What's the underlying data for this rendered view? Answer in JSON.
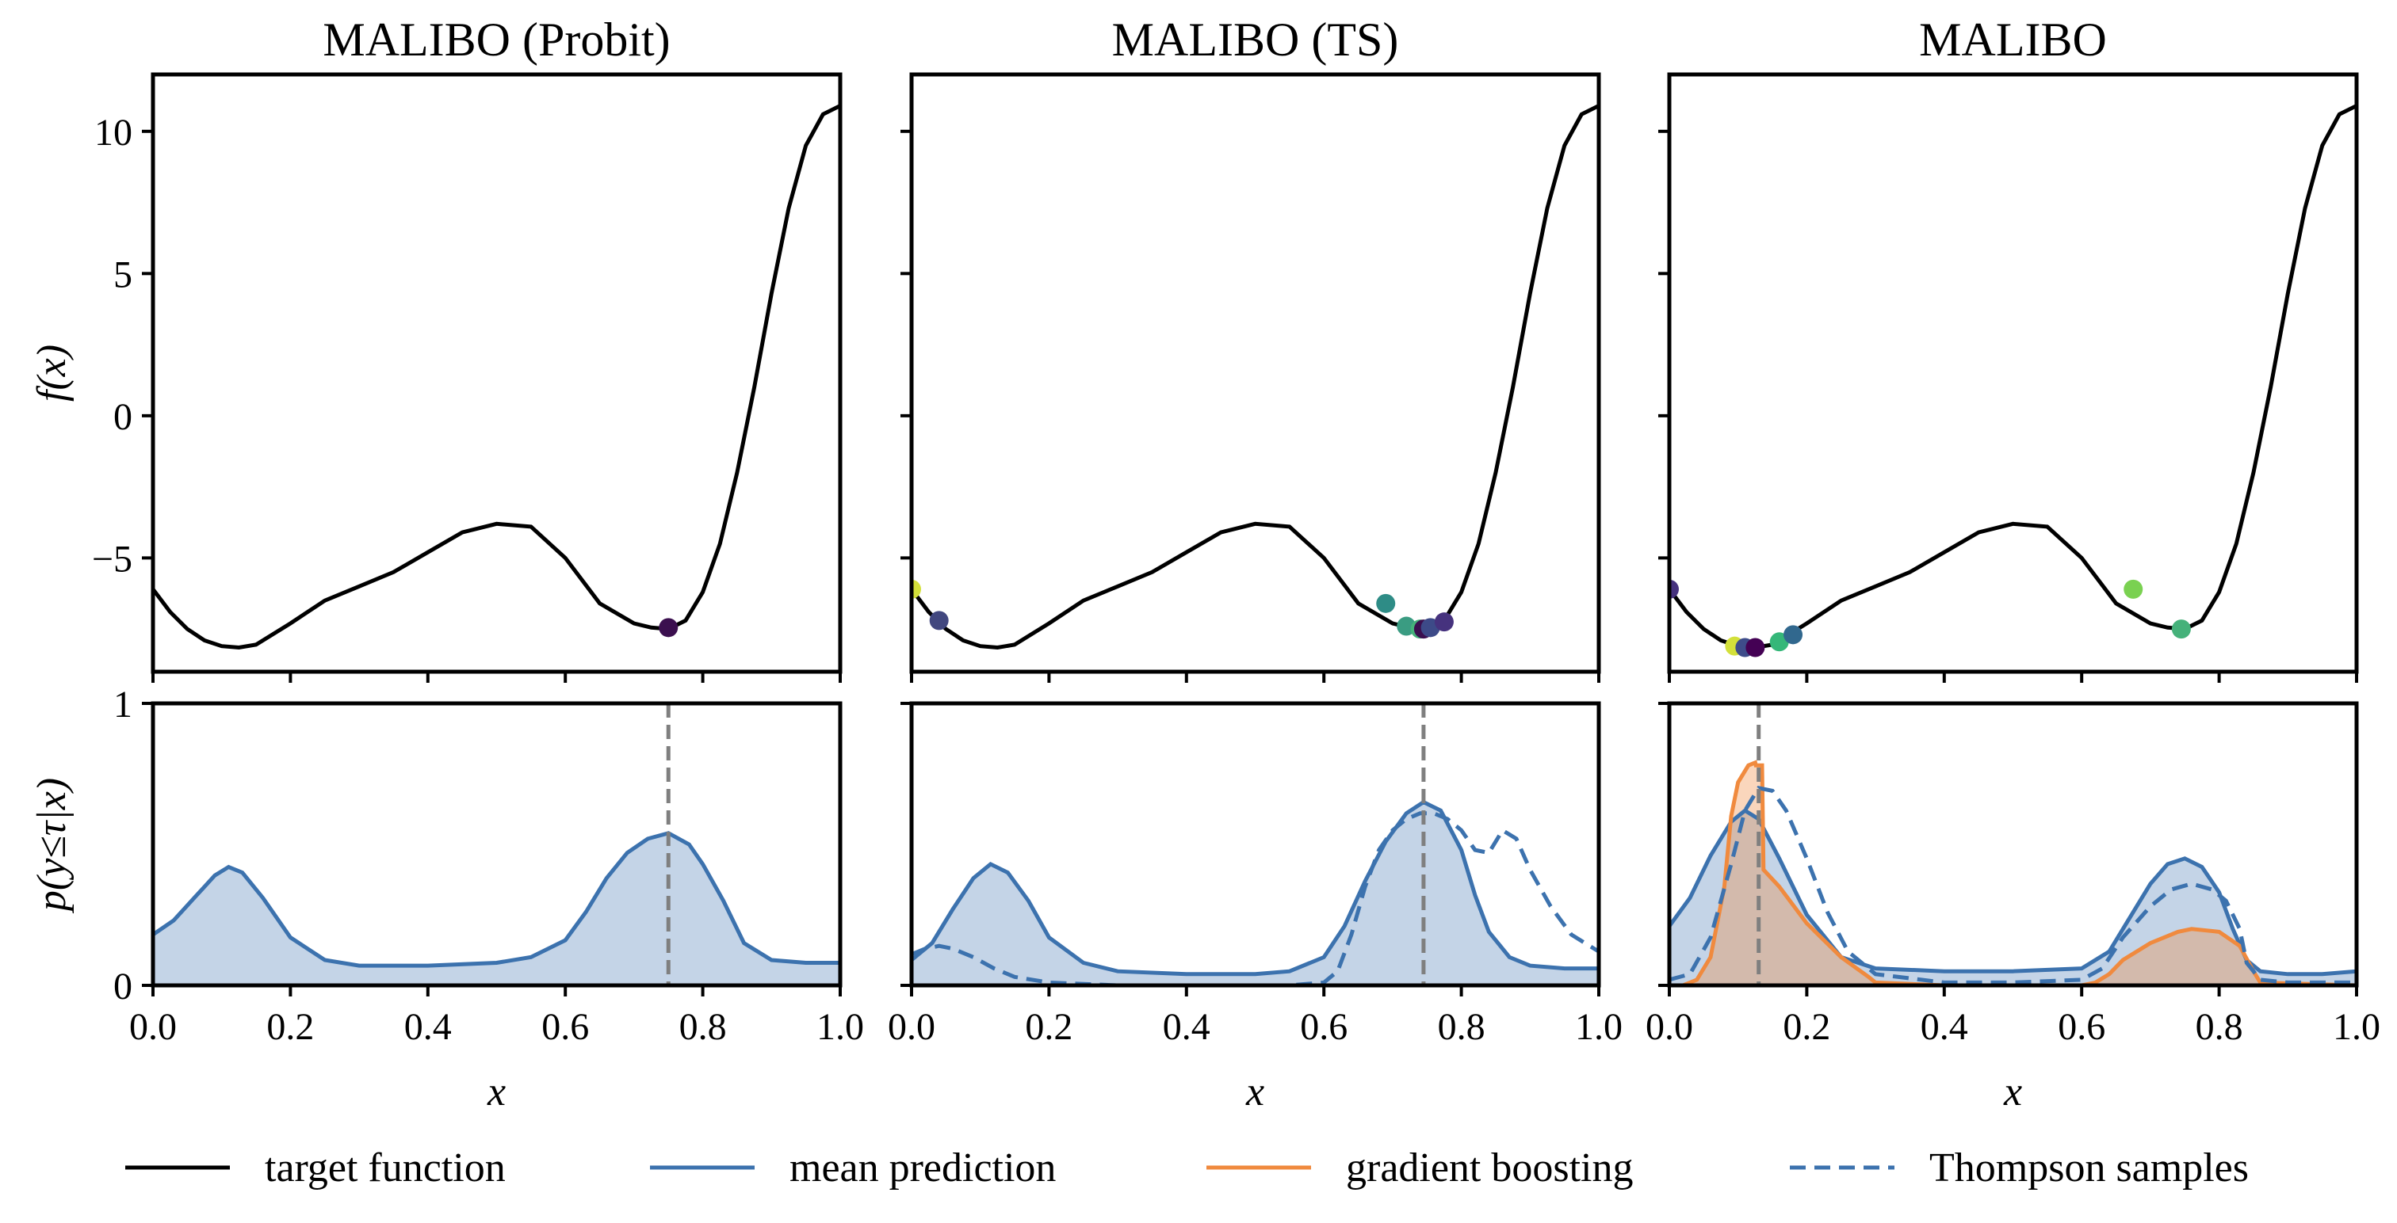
{
  "chart_data": {
    "type": "line",
    "legend": {
      "placement": "bottom",
      "entries": [
        {
          "label": "target function",
          "style": "solid",
          "color": "#000000"
        },
        {
          "label": "mean prediction",
          "style": "solid",
          "color": "#3c72ae"
        },
        {
          "label": "gradient boosting",
          "style": "solid",
          "color": "#f08a3e"
        },
        {
          "label": "Thompson samples",
          "style": "dashed",
          "color": "#3c72ae"
        }
      ]
    },
    "xlabel": "x",
    "ylabel_top": "f(x)",
    "ylabel_bottom": "p(y≤τ|x)",
    "xlim": [
      0,
      1
    ],
    "ylim_top": [
      -9,
      12
    ],
    "ylim_bottom": [
      0,
      1
    ],
    "xticks": [
      0.0,
      0.2,
      0.4,
      0.6,
      0.8,
      1.0
    ],
    "xtick_labels": [
      "0.0",
      "0.2",
      "0.4",
      "0.6",
      "0.8",
      "1.0"
    ],
    "yticks_top": [
      10,
      5,
      0,
      -5
    ],
    "ytick_labels_top": [
      "10",
      "5",
      "0",
      "−5"
    ],
    "yticks_bottom": [
      1,
      0
    ],
    "ytick_labels_bottom": [
      "1",
      "0"
    ],
    "target_function": {
      "x": [
        0.0,
        0.025,
        0.05,
        0.075,
        0.1,
        0.125,
        0.15,
        0.2,
        0.25,
        0.3,
        0.35,
        0.4,
        0.45,
        0.5,
        0.55,
        0.6,
        0.65,
        0.7,
        0.725,
        0.75,
        0.775,
        0.8,
        0.825,
        0.85,
        0.875,
        0.9,
        0.925,
        0.95,
        0.975,
        1.0
      ],
      "y": [
        -6.1,
        -6.9,
        -7.5,
        -7.9,
        -8.1,
        -8.15,
        -8.05,
        -7.3,
        -6.5,
        -6.0,
        -5.5,
        -4.8,
        -4.1,
        -3.8,
        -3.9,
        -5.0,
        -6.6,
        -7.3,
        -7.45,
        -7.5,
        -7.2,
        -6.2,
        -4.5,
        -2.0,
        1.0,
        4.3,
        7.3,
        9.5,
        10.6,
        10.9
      ]
    },
    "panels": [
      {
        "title": "MALIBO (Probit)",
        "observations": [
          {
            "x": 0.75,
            "y": -7.45,
            "color": "#3b0f4f"
          }
        ],
        "incumbent_x": 0.75,
        "mean_prediction": {
          "x": [
            0.0,
            0.03,
            0.06,
            0.09,
            0.11,
            0.13,
            0.16,
            0.2,
            0.25,
            0.3,
            0.4,
            0.5,
            0.55,
            0.6,
            0.63,
            0.66,
            0.69,
            0.72,
            0.75,
            0.78,
            0.8,
            0.83,
            0.86,
            0.9,
            0.95,
            1.0
          ],
          "y": [
            0.18,
            0.23,
            0.31,
            0.39,
            0.42,
            0.4,
            0.31,
            0.17,
            0.09,
            0.07,
            0.07,
            0.08,
            0.1,
            0.16,
            0.26,
            0.38,
            0.47,
            0.52,
            0.54,
            0.5,
            0.43,
            0.3,
            0.15,
            0.09,
            0.08,
            0.08
          ]
        }
      },
      {
        "title": "MALIBO (TS)",
        "observations": [
          {
            "x": 0.0,
            "y": -6.1,
            "color": "#d3e03a"
          },
          {
            "x": 0.04,
            "y": -7.2,
            "color": "#41477f"
          },
          {
            "x": 0.69,
            "y": -6.6,
            "color": "#2e8c86"
          },
          {
            "x": 0.72,
            "y": -7.4,
            "color": "#3a9c82"
          },
          {
            "x": 0.74,
            "y": -7.5,
            "color": "#45b17a"
          },
          {
            "x": 0.745,
            "y": -7.5,
            "color": "#3b0f4f"
          },
          {
            "x": 0.755,
            "y": -7.45,
            "color": "#3d4a88"
          },
          {
            "x": 0.775,
            "y": -7.25,
            "color": "#46327e"
          }
        ],
        "incumbent_x": 0.745,
        "mean_prediction": {
          "x": [
            0.0,
            0.03,
            0.06,
            0.09,
            0.115,
            0.14,
            0.17,
            0.2,
            0.25,
            0.3,
            0.4,
            0.5,
            0.55,
            0.6,
            0.63,
            0.66,
            0.69,
            0.72,
            0.745,
            0.77,
            0.8,
            0.82,
            0.84,
            0.87,
            0.9,
            0.95,
            1.0
          ],
          "y": [
            0.09,
            0.15,
            0.27,
            0.38,
            0.43,
            0.4,
            0.3,
            0.17,
            0.08,
            0.05,
            0.04,
            0.04,
            0.05,
            0.1,
            0.21,
            0.37,
            0.51,
            0.61,
            0.65,
            0.62,
            0.48,
            0.32,
            0.19,
            0.1,
            0.07,
            0.06,
            0.06
          ]
        },
        "thompson_samples": {
          "x": [
            0.0,
            0.02,
            0.04,
            0.06,
            0.09,
            0.12,
            0.15,
            0.2,
            0.3,
            0.4,
            0.5,
            0.55,
            0.6,
            0.62,
            0.64,
            0.66,
            0.68,
            0.7,
            0.72,
            0.74,
            0.76,
            0.78,
            0.8,
            0.82,
            0.84,
            0.86,
            0.88,
            0.9,
            0.93,
            0.96,
            1.0
          ],
          "y": [
            0.11,
            0.13,
            0.14,
            0.13,
            0.1,
            0.06,
            0.03,
            0.01,
            0.0,
            0.0,
            0.0,
            0.0,
            0.01,
            0.05,
            0.18,
            0.35,
            0.48,
            0.55,
            0.59,
            0.61,
            0.61,
            0.59,
            0.55,
            0.48,
            0.47,
            0.55,
            0.52,
            0.41,
            0.28,
            0.18,
            0.12
          ]
        }
      },
      {
        "title": "MALIBO",
        "observations": [
          {
            "x": 0.0,
            "y": -6.1,
            "color": "#46327e"
          },
          {
            "x": 0.095,
            "y": -8.1,
            "color": "#d3e03a"
          },
          {
            "x": 0.11,
            "y": -8.15,
            "color": "#3e4c8a"
          },
          {
            "x": 0.125,
            "y": -8.15,
            "color": "#440154"
          },
          {
            "x": 0.16,
            "y": -7.95,
            "color": "#35b779"
          },
          {
            "x": 0.18,
            "y": -7.7,
            "color": "#31688e"
          },
          {
            "x": 0.675,
            "y": -6.1,
            "color": "#7ad151"
          },
          {
            "x": 0.745,
            "y": -7.5,
            "color": "#45b17a"
          }
        ],
        "incumbent_x": 0.13,
        "mean_prediction": {
          "x": [
            0.0,
            0.03,
            0.06,
            0.09,
            0.11,
            0.13,
            0.16,
            0.2,
            0.25,
            0.3,
            0.4,
            0.5,
            0.6,
            0.64,
            0.67,
            0.7,
            0.725,
            0.75,
            0.775,
            0.8,
            0.82,
            0.84,
            0.86,
            0.9,
            0.95,
            1.0
          ],
          "y": [
            0.21,
            0.31,
            0.46,
            0.58,
            0.62,
            0.59,
            0.45,
            0.25,
            0.1,
            0.06,
            0.05,
            0.05,
            0.06,
            0.12,
            0.24,
            0.36,
            0.43,
            0.45,
            0.42,
            0.33,
            0.2,
            0.09,
            0.05,
            0.04,
            0.04,
            0.05
          ]
        },
        "gradient_boosting": {
          "x": [
            0.0,
            0.02,
            0.04,
            0.06,
            0.08,
            0.09,
            0.1,
            0.115,
            0.125,
            0.126,
            0.135,
            0.137,
            0.16,
            0.2,
            0.25,
            0.29,
            0.3,
            0.4,
            0.5,
            0.6,
            0.62,
            0.64,
            0.66,
            0.7,
            0.74,
            0.76,
            0.8,
            0.83,
            0.85,
            0.86,
            1.0
          ],
          "y": [
            0.0,
            0.0,
            0.02,
            0.1,
            0.35,
            0.6,
            0.72,
            0.78,
            0.79,
            0.78,
            0.78,
            0.41,
            0.35,
            0.22,
            0.1,
            0.03,
            0.01,
            0.0,
            0.0,
            0.0,
            0.01,
            0.04,
            0.09,
            0.15,
            0.19,
            0.2,
            0.19,
            0.14,
            0.05,
            0.01,
            0.0
          ]
        },
        "thompson_samples": {
          "x": [
            0.0,
            0.03,
            0.06,
            0.09,
            0.11,
            0.13,
            0.15,
            0.17,
            0.2,
            0.23,
            0.26,
            0.3,
            0.4,
            0.5,
            0.6,
            0.63,
            0.66,
            0.7,
            0.73,
            0.76,
            0.79,
            0.81,
            0.83,
            0.84,
            0.86,
            0.9,
            1.0
          ],
          "y": [
            0.02,
            0.04,
            0.17,
            0.43,
            0.62,
            0.7,
            0.69,
            0.62,
            0.45,
            0.26,
            0.12,
            0.04,
            0.01,
            0.01,
            0.02,
            0.06,
            0.17,
            0.28,
            0.34,
            0.36,
            0.34,
            0.3,
            0.2,
            0.08,
            0.02,
            0.01,
            0.01
          ]
        }
      }
    ]
  }
}
